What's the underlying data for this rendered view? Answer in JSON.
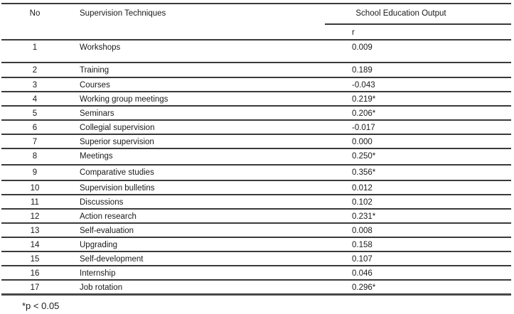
{
  "table": {
    "header": {
      "col_no": "No",
      "col_technique": "Supervision Techniques",
      "col_output": "School Education Output",
      "subheader_r": "r"
    },
    "rows": [
      {
        "no": "1",
        "technique": "Workshops",
        "r": "0.009"
      },
      {
        "no": "2",
        "technique": "Training",
        "r": "0.189"
      },
      {
        "no": "3",
        "technique": "Courses",
        "r": "-0.043"
      },
      {
        "no": "4",
        "technique": "Working group meetings",
        "r": "0.219*"
      },
      {
        "no": "5",
        "technique": "Seminars",
        "r": "0.206*"
      },
      {
        "no": "6",
        "technique": "Collegial supervision",
        "r": "-0.017"
      },
      {
        "no": "7",
        "technique": "Superior supervision",
        "r": "0.000"
      },
      {
        "no": "8",
        "technique": "Meetings",
        "r": "0.250*"
      },
      {
        "no": "9",
        "technique": "Comparative studies",
        "r": "0.356*"
      },
      {
        "no": "10",
        "technique": "Supervision bulletins",
        "r": "0.012"
      },
      {
        "no": "11",
        "technique": "Discussions",
        "r": "0.102"
      },
      {
        "no": "12",
        "technique": "Action research",
        "r": "0.231*"
      },
      {
        "no": "13",
        "technique": "Self-evaluation",
        "r": "0.008"
      },
      {
        "no": "14",
        "technique": "Upgrading",
        "r": "0.158"
      },
      {
        "no": "15",
        "technique": "Self-development",
        "r": "0.107"
      },
      {
        "no": "16",
        "technique": "Internship",
        "r": "0.046"
      },
      {
        "no": "17",
        "technique": "Job rotation",
        "r": "0.296*"
      }
    ],
    "footnote": "*p < 0.05"
  },
  "colors": {
    "background": "#ffffff",
    "text": "#1a1a1a",
    "rule": "#3a3a3a"
  },
  "chart_data": {
    "type": "table",
    "title": "School Education Output",
    "columns": [
      "No",
      "Supervision Techniques",
      "r"
    ],
    "categories": [
      "Workshops",
      "Training",
      "Courses",
      "Working group meetings",
      "Seminars",
      "Collegial supervision",
      "Superior supervision",
      "Meetings",
      "Comparative studies",
      "Supervision bulletins",
      "Discussions",
      "Action research",
      "Self-evaluation",
      "Upgrading",
      "Self-development",
      "Internship",
      "Job rotation"
    ],
    "values": [
      0.009,
      0.189,
      -0.043,
      0.219,
      0.206,
      -0.017,
      0.0,
      0.25,
      0.356,
      0.012,
      0.102,
      0.231,
      0.008,
      0.158,
      0.107,
      0.046,
      0.296
    ],
    "significant_flags": [
      false,
      false,
      false,
      true,
      true,
      false,
      false,
      true,
      true,
      false,
      false,
      true,
      false,
      false,
      false,
      false,
      true
    ],
    "footnote": "*p < 0.05"
  }
}
